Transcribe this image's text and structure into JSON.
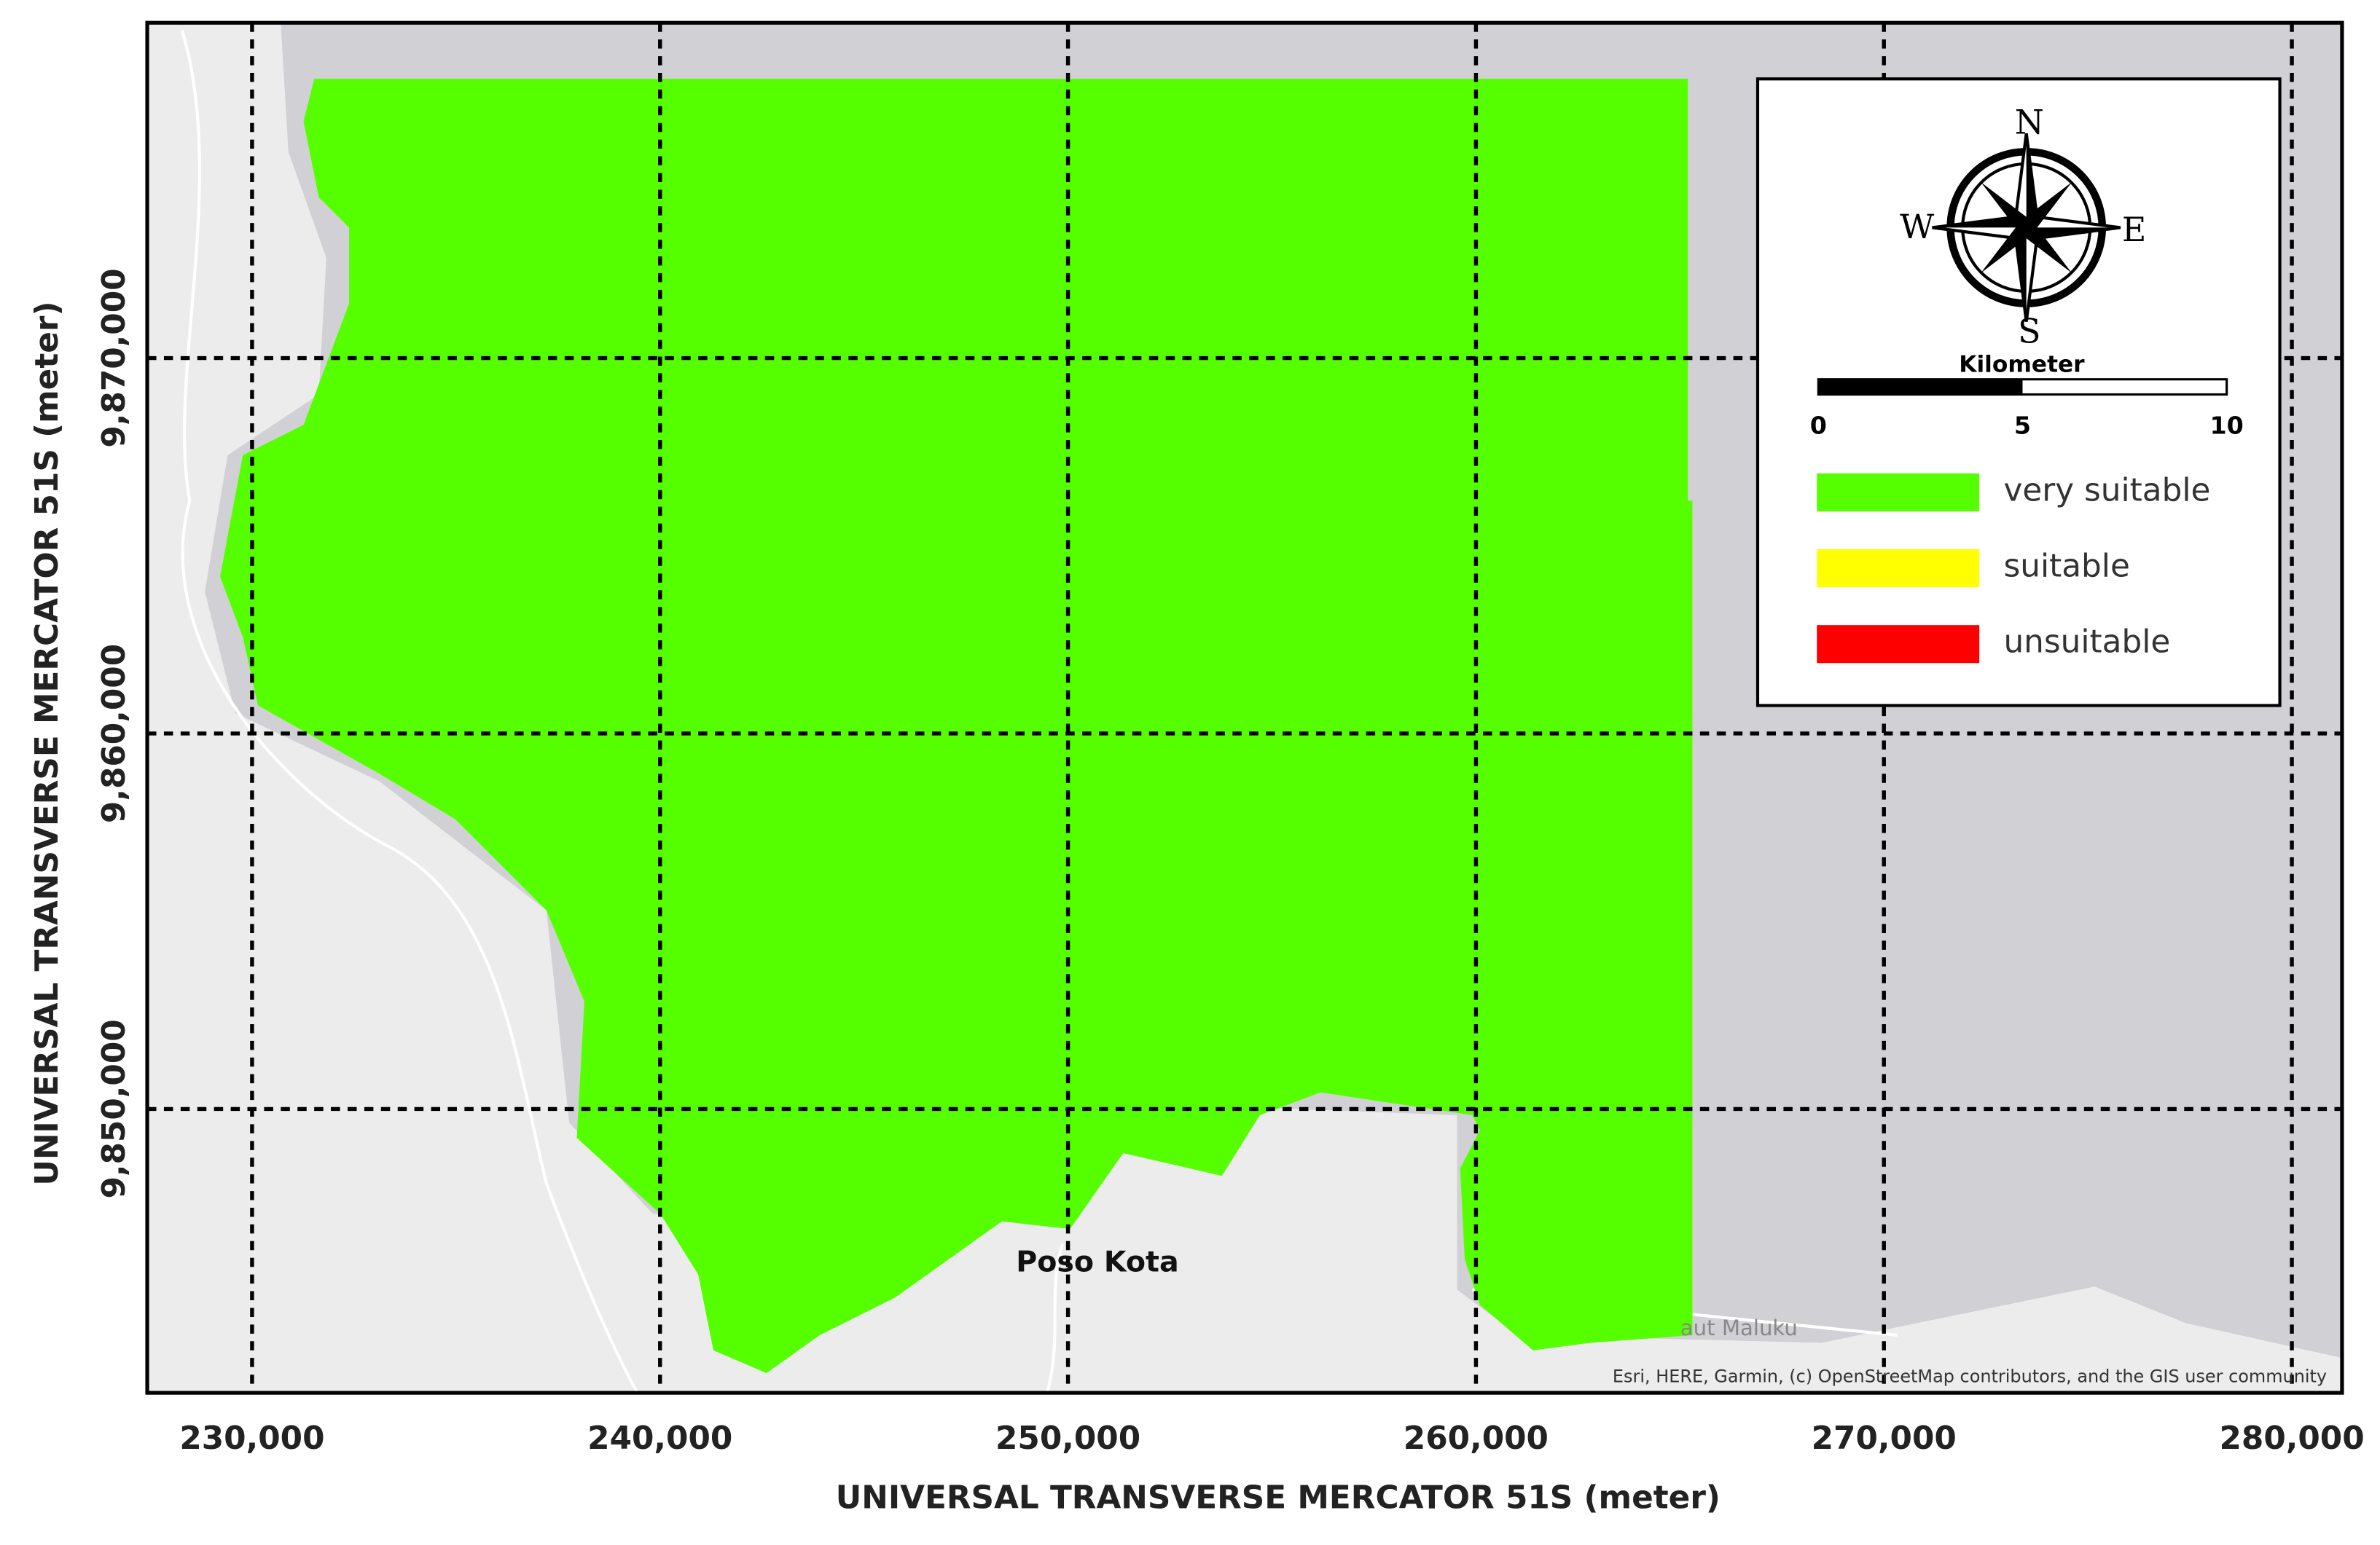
{
  "axes": {
    "x_label": "UNIVERSAL TRANSVERSE MERCATOR 51S (meter)",
    "y_label": "UNIVERSAL TRANSVERSE MERCATOR 51S (meter)",
    "xlim": [
      227430,
      281230
    ],
    "ylim": [
      9842440,
      9878930
    ],
    "xticks": [
      {
        "value": 230000,
        "label": "230,000"
      },
      {
        "value": 240000,
        "label": "240,000"
      },
      {
        "value": 250000,
        "label": "250,000"
      },
      {
        "value": 260000,
        "label": "260,000"
      },
      {
        "value": 270000,
        "label": "270,000"
      },
      {
        "value": 280000,
        "label": "280,000"
      }
    ],
    "yticks": [
      {
        "value": 9850000,
        "label": "9,850,000"
      },
      {
        "value": 9860000,
        "label": "9,860,000"
      },
      {
        "value": 9870000,
        "label": "9,870,000"
      }
    ]
  },
  "compass": {
    "n": "N",
    "e": "E",
    "s": "S",
    "w": "W"
  },
  "scale_bar": {
    "title": "Kilometer",
    "ticks": [
      0,
      5,
      10
    ]
  },
  "legend": {
    "items": [
      {
        "label": "very suitable",
        "color": "#55ff00"
      },
      {
        "label": "suitable",
        "color": "#ffff00"
      },
      {
        "label": "unsuitable",
        "color": "#ff0000"
      }
    ]
  },
  "places": [
    "Poso Kota",
    "aut Maluku"
  ],
  "attribution": "Esri, HERE, Garmin, (c) OpenStreetMap contributors, and the GIS user community"
}
